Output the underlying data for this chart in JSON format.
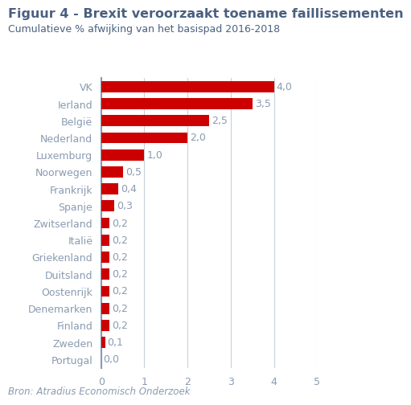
{
  "title": "Figuur 4 - Brexit veroorzaakt toename faillissementen",
  "subtitle": "Cumulatieve % afwijking van het basispad 2016-2018",
  "source": "Bron: Atradius Economisch Onderzoek",
  "categories": [
    "VK",
    "Ierland",
    "België",
    "Nederland",
    "Luxemburg",
    "Noorwegen",
    "Frankrijk",
    "Spanje",
    "Zwitserland",
    "Italië",
    "Griekenland",
    "Duitsland",
    "Oostenrijk",
    "Denemarken",
    "Finland",
    "Zweden",
    "Portugal"
  ],
  "values": [
    4.0,
    3.5,
    2.5,
    2.0,
    1.0,
    0.5,
    0.4,
    0.3,
    0.2,
    0.2,
    0.2,
    0.2,
    0.2,
    0.2,
    0.2,
    0.1,
    0.0
  ],
  "labels": [
    "4,0",
    "3,5",
    "2,5",
    "2,0",
    "1,0",
    "0,5",
    "0,4",
    "0,3",
    "0,2",
    "0,2",
    "0,2",
    "0,2",
    "0,2",
    "0,2",
    "0,2",
    "0,1",
    "0,0"
  ],
  "bar_color": "#cc0000",
  "axis_color": "#8a9bb0",
  "title_color": "#4a6080",
  "subtitle_color": "#4a6080",
  "label_color": "#8a9bb0",
  "source_color": "#8a9bb0",
  "xlim": [
    0,
    5
  ],
  "xticks": [
    0,
    1,
    2,
    3,
    4,
    5
  ],
  "background_color": "#ffffff",
  "grid_color": "#c8d0d8",
  "title_fontsize": 11.5,
  "subtitle_fontsize": 9.0,
  "label_fontsize": 9.0,
  "tick_fontsize": 9.0,
  "source_fontsize": 8.5,
  "bar_height": 0.65
}
